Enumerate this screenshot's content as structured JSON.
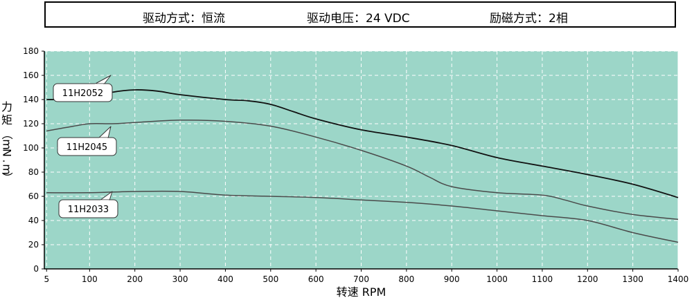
{
  "header": {
    "drive_mode": "驱动方式：恒流",
    "drive_voltage": "驱动电压：24 VDC",
    "excitation": "励磁方式：2相"
  },
  "colors": {
    "plot_bg": "#9cd6c8",
    "grid": "#ffffff",
    "series": [
      "#111111",
      "#4a4a4a",
      "#4a4a4a"
    ]
  },
  "chart_data": {
    "type": "line",
    "title": "",
    "xlabel": "转速 RPM",
    "ylabel": "力矩（mN.m）",
    "xlim": [
      0,
      1400
    ],
    "ylim": [
      0,
      180
    ],
    "x_ticks": [
      5,
      100,
      200,
      300,
      400,
      500,
      600,
      700,
      800,
      900,
      1000,
      1100,
      1200,
      1300,
      1400
    ],
    "y_ticks": [
      0,
      20,
      40,
      60,
      80,
      100,
      120,
      140,
      160,
      180
    ],
    "grid": true,
    "series": [
      {
        "name": "11H2052",
        "x": [
          5,
          50,
          100,
          150,
          200,
          250,
          300,
          400,
          450,
          500,
          550,
          600,
          700,
          800,
          900,
          1000,
          1100,
          1200,
          1300,
          1400
        ],
        "values": [
          140,
          140,
          141,
          146,
          148,
          147,
          144,
          140,
          139,
          136,
          130,
          124,
          115,
          109,
          102,
          92,
          85,
          78,
          70,
          59
        ]
      },
      {
        "name": "11H2045",
        "x": [
          5,
          50,
          100,
          150,
          200,
          300,
          400,
          500,
          600,
          700,
          800,
          850,
          900,
          1000,
          1100,
          1150,
          1200,
          1300,
          1400
        ],
        "values": [
          114,
          117,
          120,
          120,
          121,
          123,
          122,
          118,
          109,
          98,
          85,
          76,
          68,
          63,
          61,
          57,
          52,
          45,
          41
        ]
      },
      {
        "name": "11H2033",
        "x": [
          5,
          100,
          200,
          300,
          400,
          500,
          600,
          700,
          800,
          900,
          1000,
          1100,
          1200,
          1300,
          1400
        ],
        "values": [
          63,
          63,
          64,
          64,
          61,
          60,
          59,
          57,
          55,
          52,
          48,
          44,
          40,
          30,
          22
        ]
      }
    ]
  }
}
